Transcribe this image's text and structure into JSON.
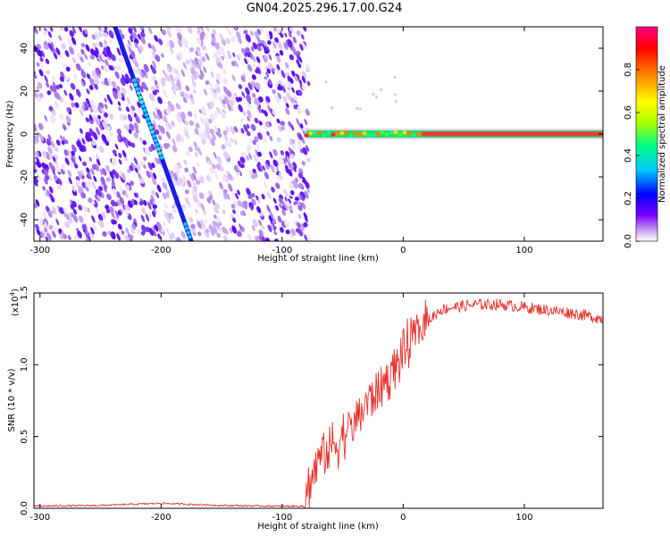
{
  "title": "GN04.2025.296.17.00.G24",
  "chart_data": [
    {
      "type": "heatmap",
      "title": "GN04.2025.296.17.00.G24",
      "xlabel": "Height of straight line (km)",
      "ylabel": "Frequency (Hz)",
      "xlim": [
        -305,
        165
      ],
      "ylim": [
        -50,
        50
      ],
      "xticks": [
        -300,
        -200,
        -100,
        0,
        100
      ],
      "yticks": [
        -40,
        -20,
        0,
        20,
        40
      ],
      "colorbar": {
        "label": "Normalized spectral amplitude",
        "range": [
          0,
          1
        ],
        "ticks": [
          "0.0",
          "0.2",
          "0.4",
          "0.6",
          "0.8"
        ],
        "colors": [
          "#ffffff",
          "#c8a0f0",
          "#7a00ff",
          "#0000ff",
          "#00c8ff",
          "#00ff80",
          "#aaff00",
          "#ffff00",
          "#ff8000",
          "#ff0000",
          "#ff0080"
        ]
      },
      "features": {
        "noise_region_x": [
          -305,
          -78
        ],
        "diagonal_line": {
          "start": [
            -238,
            50
          ],
          "end": [
            -175,
            -50
          ]
        },
        "constant_tone": {
          "x": [
            -80,
            165
          ],
          "frequency": 0
        }
      }
    },
    {
      "type": "line",
      "xlabel": "Height of straight line (km)",
      "ylabel": "SNR (10 * v/v)",
      "scale_label": "(x10",
      "scale_exp": "4",
      "scale_close": ")",
      "xlim": [
        -305,
        165
      ],
      "ylim": [
        0,
        1.5
      ],
      "xticks": [
        -300,
        -200,
        -100,
        0,
        100
      ],
      "yticks": [
        "0.0",
        "0.5",
        "1.0",
        "1.5"
      ],
      "color": "#e8302a",
      "x": [
        -305,
        -250,
        -200,
        -150,
        -100,
        -82,
        -80,
        -70,
        -60,
        -50,
        -40,
        -30,
        -20,
        -10,
        0,
        10,
        20,
        30,
        40,
        60,
        80,
        100,
        120,
        140,
        165
      ],
      "y": [
        0.015,
        0.02,
        0.035,
        0.02,
        0.015,
        0.015,
        0.1,
        0.35,
        0.42,
        0.5,
        0.6,
        0.75,
        0.82,
        0.95,
        1.08,
        1.2,
        1.3,
        1.38,
        1.4,
        1.42,
        1.42,
        1.4,
        1.38,
        1.36,
        1.32
      ]
    }
  ]
}
